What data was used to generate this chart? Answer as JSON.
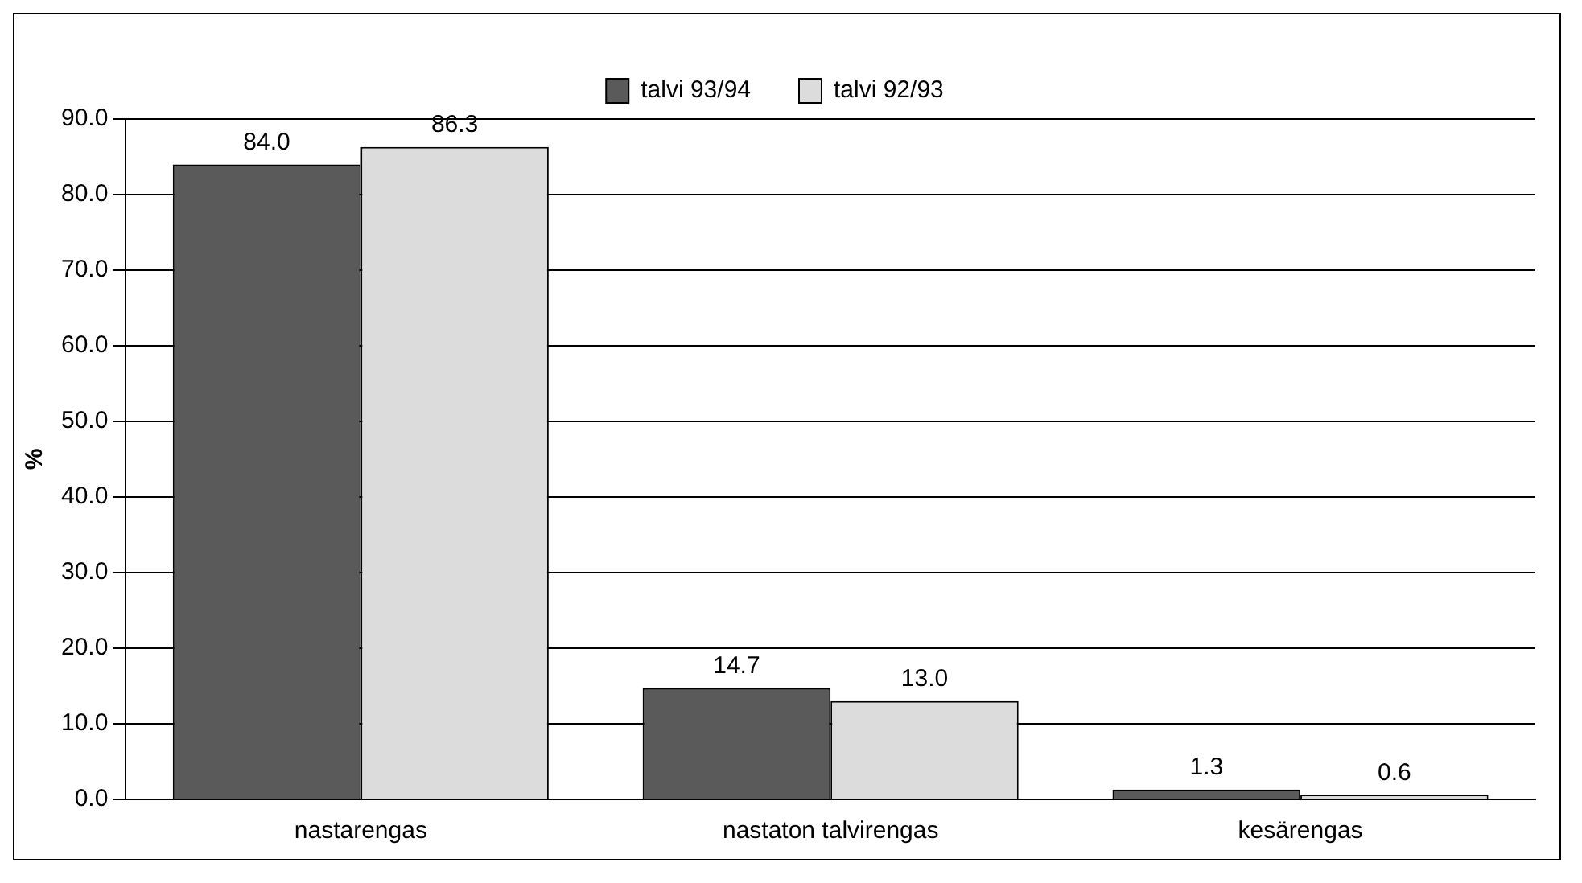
{
  "chart_data": {
    "type": "bar",
    "ylabel": "%",
    "categories": [
      "nastarengas",
      "nastaton talvirengas",
      "kesärengas"
    ],
    "series": [
      {
        "name": "talvi 93/94",
        "color": "#5a5a5a",
        "values": [
          84.0,
          14.7,
          1.3
        ],
        "value_labels": [
          "84.0",
          "14.7",
          "1.3"
        ]
      },
      {
        "name": "talvi 92/93",
        "color": "#dcdcdc",
        "values": [
          86.3,
          13.0,
          0.6
        ],
        "value_labels": [
          "86.3",
          "13.0",
          "0.6"
        ]
      }
    ],
    "ylim": [
      0,
      90
    ],
    "yticks": [
      {
        "value": 0,
        "label": "0.0"
      },
      {
        "value": 10,
        "label": "10.0"
      },
      {
        "value": 20,
        "label": "20.0"
      },
      {
        "value": 30,
        "label": "30.0"
      },
      {
        "value": 40,
        "label": "40.0"
      },
      {
        "value": 50,
        "label": "50.0"
      },
      {
        "value": 60,
        "label": "60.0"
      },
      {
        "value": 70,
        "label": "70.0"
      },
      {
        "value": 80,
        "label": "80.0"
      },
      {
        "value": 90,
        "label": "90.0"
      }
    ],
    "grid": "y",
    "legend": "top"
  }
}
